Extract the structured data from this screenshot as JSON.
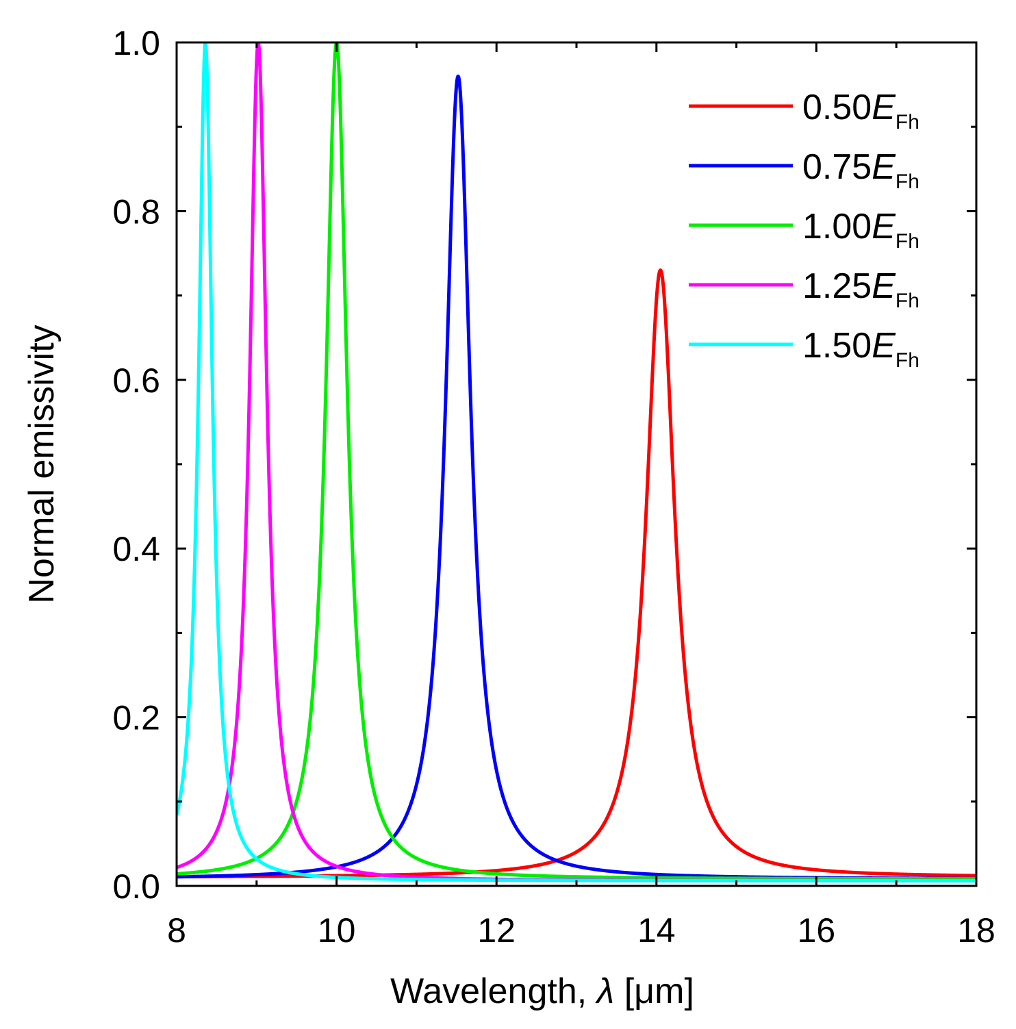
{
  "chart_data": {
    "type": "line",
    "title": "",
    "xlabel": "Wavelength, λ [μm]",
    "xlabel_main": "Wavelength, ",
    "xlabel_symbol": "λ",
    "xlabel_unit": " [μm]",
    "ylabel": "Normal emissivity",
    "xlim": [
      8,
      18
    ],
    "ylim": [
      0,
      1
    ],
    "x_ticks": [
      8,
      10,
      12,
      14,
      16,
      18
    ],
    "y_ticks": [
      "0.0",
      "0.2",
      "0.4",
      "0.6",
      "0.8",
      "1.0"
    ],
    "legend_position": "top-right",
    "grid": false,
    "series": [
      {
        "name": "0.50EFh",
        "prefix": "0.50",
        "symbol": "E",
        "subscript": "Fh",
        "color": "#ff0000",
        "peak_x": 14.05,
        "peak_y": 0.73,
        "hwhm": 0.22,
        "baseline": 0.01
      },
      {
        "name": "0.75EFh",
        "prefix": "0.75",
        "symbol": "E",
        "subscript": "Fh",
        "color": "#0000ff",
        "peak_x": 11.52,
        "peak_y": 0.96,
        "hwhm": 0.19,
        "baseline": 0.008
      },
      {
        "name": "1.00EFh",
        "prefix": "1.00",
        "symbol": "E",
        "subscript": "Fh",
        "color": "#00ee00",
        "peak_x": 10.0,
        "peak_y": 1.0,
        "hwhm": 0.16,
        "baseline": 0.008
      },
      {
        "name": "1.25EFh",
        "prefix": "1.25",
        "symbol": "E",
        "subscript": "Fh",
        "color": "#ff00ff",
        "peak_x": 9.02,
        "peak_y": 1.0,
        "hwhm": 0.13,
        "baseline": 0.006
      },
      {
        "name": "1.50EFh",
        "prefix": "1.50",
        "symbol": "E",
        "subscript": "Fh",
        "color": "#00ffff",
        "peak_x": 8.36,
        "peak_y": 1.0,
        "hwhm": 0.105,
        "baseline": 0.006
      }
    ]
  }
}
